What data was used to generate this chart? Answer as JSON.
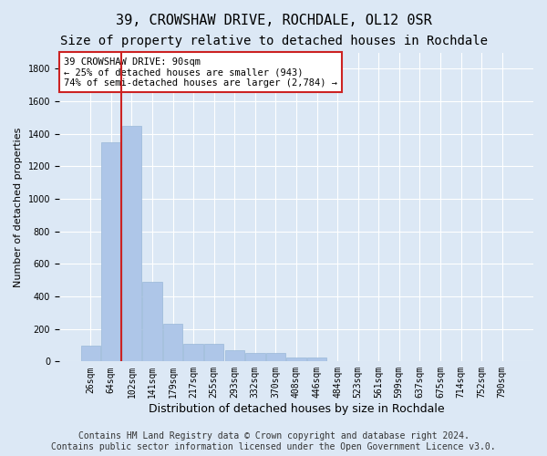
{
  "title": "39, CROWSHAW DRIVE, ROCHDALE, OL12 0SR",
  "subtitle": "Size of property relative to detached houses in Rochdale",
  "xlabel": "Distribution of detached houses by size in Rochdale",
  "ylabel": "Number of detached properties",
  "bin_labels": [
    "26sqm",
    "64sqm",
    "102sqm",
    "141sqm",
    "179sqm",
    "217sqm",
    "255sqm",
    "293sqm",
    "332sqm",
    "370sqm",
    "408sqm",
    "446sqm",
    "484sqm",
    "523sqm",
    "561sqm",
    "599sqm",
    "637sqm",
    "675sqm",
    "714sqm",
    "752sqm",
    "790sqm"
  ],
  "bar_values": [
    100,
    1350,
    1450,
    490,
    230,
    110,
    110,
    70,
    55,
    55,
    25,
    25,
    0,
    0,
    0,
    0,
    0,
    0,
    0,
    0,
    0
  ],
  "bar_color": "#aec6e8",
  "bar_edge_color": "#9ab8d8",
  "highlight_color": "#cc2222",
  "vline_bar_index": 1,
  "ylim": [
    0,
    1900
  ],
  "yticks": [
    0,
    200,
    400,
    600,
    800,
    1000,
    1200,
    1400,
    1600,
    1800
  ],
  "annotation_text": "39 CROWSHAW DRIVE: 90sqm\n← 25% of detached houses are smaller (943)\n74% of semi-detached houses are larger (2,784) →",
  "annotation_box_facecolor": "#ffffff",
  "annotation_box_edgecolor": "#cc2222",
  "footer_text": "Contains HM Land Registry data © Crown copyright and database right 2024.\nContains public sector information licensed under the Open Government Licence v3.0.",
  "bg_color": "#dce8f5",
  "plot_bg_color": "#dce8f5",
  "grid_color": "#ffffff",
  "title_fontsize": 11,
  "subtitle_fontsize": 10,
  "xlabel_fontsize": 9,
  "ylabel_fontsize": 8,
  "tick_fontsize": 7,
  "footer_fontsize": 7
}
